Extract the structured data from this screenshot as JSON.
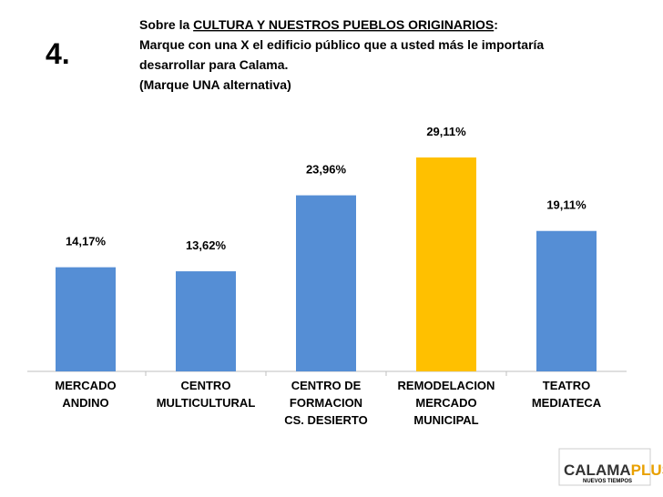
{
  "number": "4.",
  "question": {
    "line1": [
      "Sobre la ",
      "CULTURA Y NUESTROS PUEBLOS ORIGINARIOS",
      ":"
    ],
    "line2": "Marque con una X el edificio público que a usted más le importaría",
    "line3": "desarrollar para Calama.",
    "line4": "(Marque UNA alternativa)"
  },
  "chart_data": {
    "type": "bar",
    "categories": [
      [
        "MERCADO",
        "ANDINO"
      ],
      [
        "CENTRO",
        "MULTICULTURAL"
      ],
      [
        "CENTRO DE",
        "FORMACION",
        "CS. DESIERTO"
      ],
      [
        "REMODELACION",
        "MERCADO",
        "MUNICIPAL"
      ],
      [
        "TEATRO",
        "MEDIATECA"
      ]
    ],
    "values": [
      14.17,
      13.62,
      23.96,
      29.11,
      19.11
    ],
    "value_labels": [
      "14,17%",
      "13,62%",
      "23,96%",
      "29,11%",
      "19,11%"
    ],
    "colors": [
      "#558ed5",
      "#558ed5",
      "#558ed5",
      "#ffc000",
      "#558ed5"
    ]
  },
  "logo": {
    "name": [
      "CALAMA",
      "PLUS"
    ],
    "tagline": "NUEVOS TIEMPOS"
  }
}
